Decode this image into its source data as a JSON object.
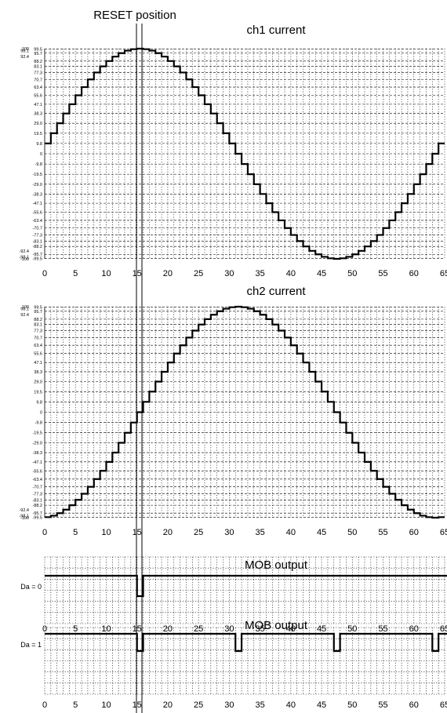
{
  "annotation": "RESET position",
  "colors": {
    "line": "#000000",
    "grid": "#000000",
    "background": "#ffffff"
  },
  "chart_data": [
    {
      "type": "line",
      "title": "ch1 current",
      "xticks": [
        "0",
        "5",
        "10",
        "15",
        "20",
        "25",
        "30",
        "35",
        "40",
        "45",
        "50",
        "55",
        "60",
        "65"
      ],
      "xlim": [
        0,
        65
      ],
      "ylim": [
        -100,
        100
      ],
      "yticks_left": [
        "100",
        "98.1",
        "92.4",
        "-92.4",
        "-98.1",
        "-100"
      ],
      "yticks_left_values": [
        100,
        98.1,
        92.4,
        -92.4,
        -98.1,
        -100
      ],
      "yticks_right": [
        "99.5",
        "95.7",
        "88.2",
        "83.1",
        "77.3",
        "70.7",
        "63.4",
        "55.6",
        "47.1",
        "38.3",
        "29.0",
        "19.5",
        "9.8",
        "0",
        "-9.8",
        "-19.5",
        "-29.0",
        "-38.3",
        "-47.1",
        "-55.6",
        "-63.4",
        "-70.7",
        "-77.3",
        "-83.1",
        "-88.2",
        "-95.7",
        "-99.5"
      ],
      "yticks_right_values": [
        99.5,
        95.7,
        88.2,
        83.1,
        77.3,
        70.7,
        63.4,
        55.6,
        47.1,
        38.3,
        29.0,
        19.5,
        9.8,
        0,
        -9.8,
        -19.5,
        -29.0,
        -38.3,
        -47.1,
        -55.6,
        -63.4,
        -70.7,
        -77.3,
        -83.1,
        -88.2,
        -95.7,
        -99.5
      ],
      "series": [
        {
          "step": "post",
          "x": [
            0,
            1,
            2,
            3,
            4,
            5,
            6,
            7,
            8,
            9,
            10,
            11,
            12,
            13,
            14,
            15,
            16,
            17,
            18,
            19,
            20,
            21,
            22,
            23,
            24,
            25,
            26,
            27,
            28,
            29,
            30,
            31,
            32,
            33,
            34,
            35,
            36,
            37,
            38,
            39,
            40,
            41,
            42,
            43,
            44,
            45,
            46,
            47,
            48,
            49,
            50,
            51,
            52,
            53,
            54,
            55,
            56,
            57,
            58,
            59,
            60,
            61,
            62,
            63,
            64
          ],
          "values": [
            9.8,
            19.5,
            29.0,
            38.3,
            47.1,
            55.6,
            63.4,
            70.7,
            77.3,
            83.1,
            88.2,
            92.4,
            95.7,
            98.1,
            99.5,
            100,
            99.5,
            98.1,
            95.7,
            92.4,
            88.2,
            83.1,
            77.3,
            70.7,
            63.4,
            55.6,
            47.1,
            38.3,
            29.0,
            19.5,
            9.8,
            0,
            -9.8,
            -19.5,
            -29.0,
            -38.3,
            -47.1,
            -55.6,
            -63.4,
            -70.7,
            -77.3,
            -83.1,
            -88.2,
            -92.4,
            -95.7,
            -98.1,
            -99.5,
            -100,
            -99.5,
            -98.1,
            -95.7,
            -92.4,
            -88.2,
            -83.1,
            -77.3,
            -70.7,
            -63.4,
            -55.6,
            -47.1,
            -38.3,
            -29.0,
            -19.5,
            -9.8,
            0,
            9.8
          ]
        }
      ],
      "grid": true
    },
    {
      "type": "line",
      "title": "ch2 current",
      "xticks": [
        "0",
        "5",
        "10",
        "15",
        "20",
        "25",
        "30",
        "35",
        "40",
        "45",
        "50",
        "55",
        "60",
        "65"
      ],
      "xlim": [
        0,
        65
      ],
      "ylim": [
        -100,
        100
      ],
      "yticks_left": [
        "100",
        "98.1",
        "92.4",
        "-92.4",
        "-98.1",
        "-100"
      ],
      "yticks_left_values": [
        100,
        98.1,
        92.4,
        -92.4,
        -98.1,
        -100
      ],
      "yticks_right": [
        "99.5",
        "95.7",
        "88.2",
        "83.1",
        "77.3",
        "70.7",
        "63.4",
        "55.6",
        "47.1",
        "38.3",
        "29.0",
        "19.5",
        "9.8",
        "0",
        "-9.8",
        "-19.5",
        "-29.0",
        "-38.3",
        "-47.1",
        "-55.6",
        "-63.4",
        "-70.7",
        "-77.3",
        "-83.1",
        "-88.2",
        "-95.7",
        "-99.5"
      ],
      "yticks_right_values": [
        99.5,
        95.7,
        88.2,
        83.1,
        77.3,
        70.7,
        63.4,
        55.6,
        47.1,
        38.3,
        29.0,
        19.5,
        9.8,
        0,
        -9.8,
        -19.5,
        -29.0,
        -38.3,
        -47.1,
        -55.6,
        -63.4,
        -70.7,
        -77.3,
        -83.1,
        -88.2,
        -95.7,
        -99.5
      ],
      "series": [
        {
          "step": "post",
          "x": [
            0,
            1,
            2,
            3,
            4,
            5,
            6,
            7,
            8,
            9,
            10,
            11,
            12,
            13,
            14,
            15,
            16,
            17,
            18,
            19,
            20,
            21,
            22,
            23,
            24,
            25,
            26,
            27,
            28,
            29,
            30,
            31,
            32,
            33,
            34,
            35,
            36,
            37,
            38,
            39,
            40,
            41,
            42,
            43,
            44,
            45,
            46,
            47,
            48,
            49,
            50,
            51,
            52,
            53,
            54,
            55,
            56,
            57,
            58,
            59,
            60,
            61,
            62,
            63,
            64
          ],
          "values": [
            -99.5,
            -98.1,
            -95.7,
            -92.4,
            -88.2,
            -83.1,
            -77.3,
            -70.7,
            -63.4,
            -55.6,
            -47.1,
            -38.3,
            -29.0,
            -19.5,
            -9.8,
            0,
            9.8,
            19.5,
            29.0,
            38.3,
            47.1,
            55.6,
            63.4,
            70.7,
            77.3,
            83.1,
            88.2,
            92.4,
            95.7,
            98.1,
            99.5,
            100,
            99.5,
            98.1,
            95.7,
            92.4,
            88.2,
            83.1,
            77.3,
            70.7,
            63.4,
            55.6,
            47.1,
            38.3,
            29.0,
            19.5,
            9.8,
            0,
            -9.8,
            -19.5,
            -29.0,
            -38.3,
            -47.1,
            -55.6,
            -63.4,
            -70.7,
            -77.3,
            -83.1,
            -88.2,
            -92.4,
            -95.7,
            -98.1,
            -99.5,
            -100,
            -99.5
          ]
        }
      ],
      "grid": true
    },
    {
      "type": "line",
      "title": "MOB output",
      "ylabel": "Da = 0",
      "xticks": [
        "0",
        "5",
        "10",
        "15",
        "20",
        "25",
        "30",
        "35",
        "40",
        "45",
        "50",
        "55",
        "60",
        "65"
      ],
      "xlim": [
        0,
        65
      ],
      "ylim": [
        0,
        1
      ],
      "series": [
        {
          "step": "post",
          "x": [
            0,
            15,
            16,
            65
          ],
          "values": [
            1,
            0,
            1,
            1
          ]
        }
      ],
      "grid": true
    },
    {
      "type": "line",
      "title": "MOB output",
      "ylabel": "Da = 1",
      "xticks": [
        "0",
        "5",
        "10",
        "15",
        "20",
        "25",
        "30",
        "35",
        "40",
        "45",
        "50",
        "55",
        "60",
        "65"
      ],
      "xlim": [
        0,
        65
      ],
      "ylim": [
        0,
        1
      ],
      "series": [
        {
          "step": "post",
          "x": [
            0,
            15,
            16,
            31,
            32,
            47,
            48,
            63,
            64,
            65
          ],
          "values": [
            1,
            0,
            1,
            0,
            1,
            0,
            1,
            0,
            1,
            1
          ]
        }
      ],
      "grid": true
    }
  ]
}
